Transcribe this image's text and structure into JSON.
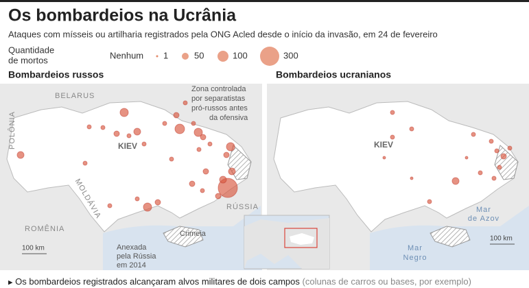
{
  "header": {
    "title": "Os bombardeios na Ucrânia",
    "subtitle": "Ataques com mísseis ou artilharia registrados pela ONG Acled desde o início da invasão, em 24 de fevereiro"
  },
  "legend": {
    "label": [
      "Quantidade",
      "de mortos"
    ],
    "items": [
      "Nenhum",
      "1",
      "50",
      "100",
      "300"
    ]
  },
  "maps": [
    {
      "title": "Bombardeios russos",
      "labels": {
        "belarus": "BELARUS",
        "poland": "POLÔNIA",
        "kiev": "KIEV",
        "moldova": "MOLDÁVIA",
        "romania": "ROMÊNIA",
        "russia": "RÚSSIA",
        "crimea": "Crimeia",
        "scale": "100 km"
      },
      "separatist_note": [
        "Zona controlada",
        "por separatistas",
        "pró-russos antes",
        "da ofensiva"
      ],
      "annex_note": [
        "Anexada",
        "pela Rússia",
        "em 2014"
      ]
    },
    {
      "title": "Bombardeios ucranianos",
      "labels": {
        "kiev": "KIEV",
        "scale": "100 km"
      },
      "sea_azov": [
        "Mar",
        "de Azov"
      ],
      "sea_black": [
        "Mar",
        "Negro"
      ]
    }
  ],
  "footer": {
    "text": "Os bombardeios registrados alcançaram alvos militares de dois campos",
    "note": "(colunas de carros ou bases, por exemplo)"
  }
}
